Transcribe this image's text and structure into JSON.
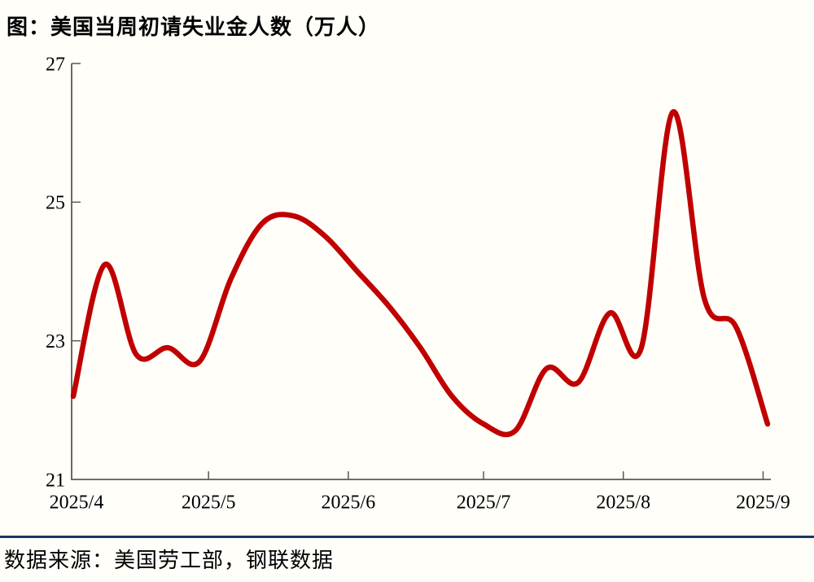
{
  "title": "图：美国当周初请失业金人数（万人）",
  "footer": {
    "source_label": "数据来源：美国劳工部，钢联数据"
  },
  "colors": {
    "line": "#C00000",
    "axis": "#595959",
    "tick_text": "#000000",
    "separator": "#17375E",
    "background": "#FFFEF9"
  },
  "chart_data": {
    "type": "line",
    "title": "图：美国当周初请失业金人数（万人）",
    "series_name": "美国当周初请失业金人数",
    "unit": "万人",
    "smooth": true,
    "grid": false,
    "legend": "none",
    "line_color": "#C00000",
    "ylim": [
      21,
      27
    ],
    "yticks": [
      21,
      23,
      25,
      27
    ],
    "xticks": [
      {
        "label": "2025/4",
        "date": "2025-04-01"
      },
      {
        "label": "2025/5",
        "date": "2025-05-01"
      },
      {
        "label": "2025/6",
        "date": "2025-06-01"
      },
      {
        "label": "2025/7",
        "date": "2025-07-01"
      },
      {
        "label": "2025/8",
        "date": "2025-08-01"
      },
      {
        "label": "2025/9",
        "date": "2025-09-01"
      }
    ],
    "x": [
      "2025-04-01",
      "2025-04-08",
      "2025-04-15",
      "2025-04-22",
      "2025-04-29",
      "2025-05-06",
      "2025-05-13",
      "2025-05-20",
      "2025-05-27",
      "2025-06-03",
      "2025-06-10",
      "2025-06-17",
      "2025-06-24",
      "2025-07-01",
      "2025-07-08",
      "2025-07-15",
      "2025-07-22",
      "2025-07-29",
      "2025-08-05",
      "2025-08-12",
      "2025-08-19",
      "2025-08-26",
      "2025-09-02"
    ],
    "values": [
      22.2,
      24.1,
      22.8,
      22.9,
      22.7,
      23.9,
      24.7,
      24.8,
      24.5,
      24.0,
      23.5,
      22.9,
      22.2,
      21.8,
      21.7,
      22.6,
      22.4,
      23.4,
      22.9,
      26.3,
      23.6,
      23.2,
      21.8
    ]
  }
}
